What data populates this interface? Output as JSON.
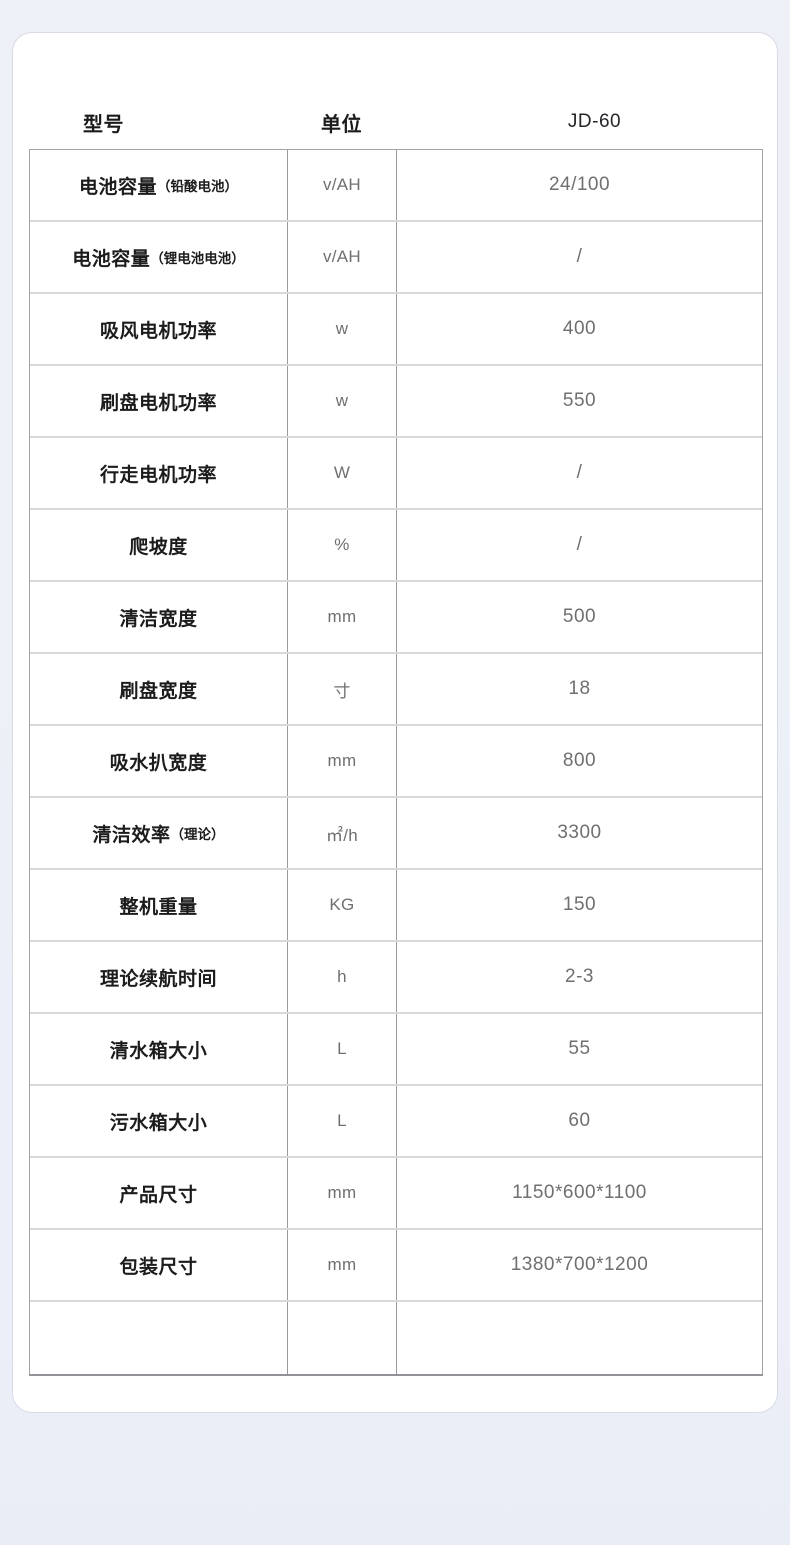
{
  "colors": {
    "page_background": "#edf0f7",
    "card_background": "#ffffff",
    "card_border": "#d9dce4",
    "table_outer_border": "#a0a3a8",
    "table_column_divider": "#97999d",
    "table_row_divider": "#dadada",
    "label_text": "#1c1c1c",
    "value_text": "#6f6f6f"
  },
  "header": {
    "model_column_label": "型号",
    "unit_column_label": "单位",
    "model_value": "JD-60"
  },
  "table": {
    "rows": [
      {
        "label": "电池容量",
        "sub": "（铅酸电池）",
        "unit": "v/AH",
        "value": "24/100"
      },
      {
        "label": "电池容量",
        "sub": "（锂电池电池）",
        "unit": "v/AH",
        "value": "/"
      },
      {
        "label": "吸风电机功率",
        "sub": "",
        "unit": "w",
        "value": "400"
      },
      {
        "label": "刷盘电机功率",
        "sub": "",
        "unit": "w",
        "value": "550"
      },
      {
        "label": "行走电机功率",
        "sub": "",
        "unit": "W",
        "value": "/"
      },
      {
        "label": "爬坡度",
        "sub": "",
        "unit": "%",
        "value": "/"
      },
      {
        "label": "清洁宽度",
        "sub": "",
        "unit": "mm",
        "value": "500"
      },
      {
        "label": "刷盘宽度",
        "sub": "",
        "unit": "寸",
        "value": "18"
      },
      {
        "label": "吸水扒宽度",
        "sub": "",
        "unit": "mm",
        "value": "800"
      },
      {
        "label": "清洁效率",
        "sub": "（理论）",
        "unit": "㎡/h",
        "value": "3300"
      },
      {
        "label": "整机重量",
        "sub": "",
        "unit": "KG",
        "value": "150"
      },
      {
        "label": "理论续航时间",
        "sub": "",
        "unit": "h",
        "value": "2-3"
      },
      {
        "label": "清水箱大小",
        "sub": "",
        "unit": "L",
        "value": "55"
      },
      {
        "label": "污水箱大小",
        "sub": "",
        "unit": "L",
        "value": "60"
      },
      {
        "label": "产品尺寸",
        "sub": "",
        "unit": "mm",
        "value": "1150*600*1100"
      },
      {
        "label": "包装尺寸",
        "sub": "",
        "unit": "mm",
        "value": "1380*700*1200"
      },
      {
        "label": "",
        "sub": "",
        "unit": "",
        "value": ""
      }
    ]
  }
}
